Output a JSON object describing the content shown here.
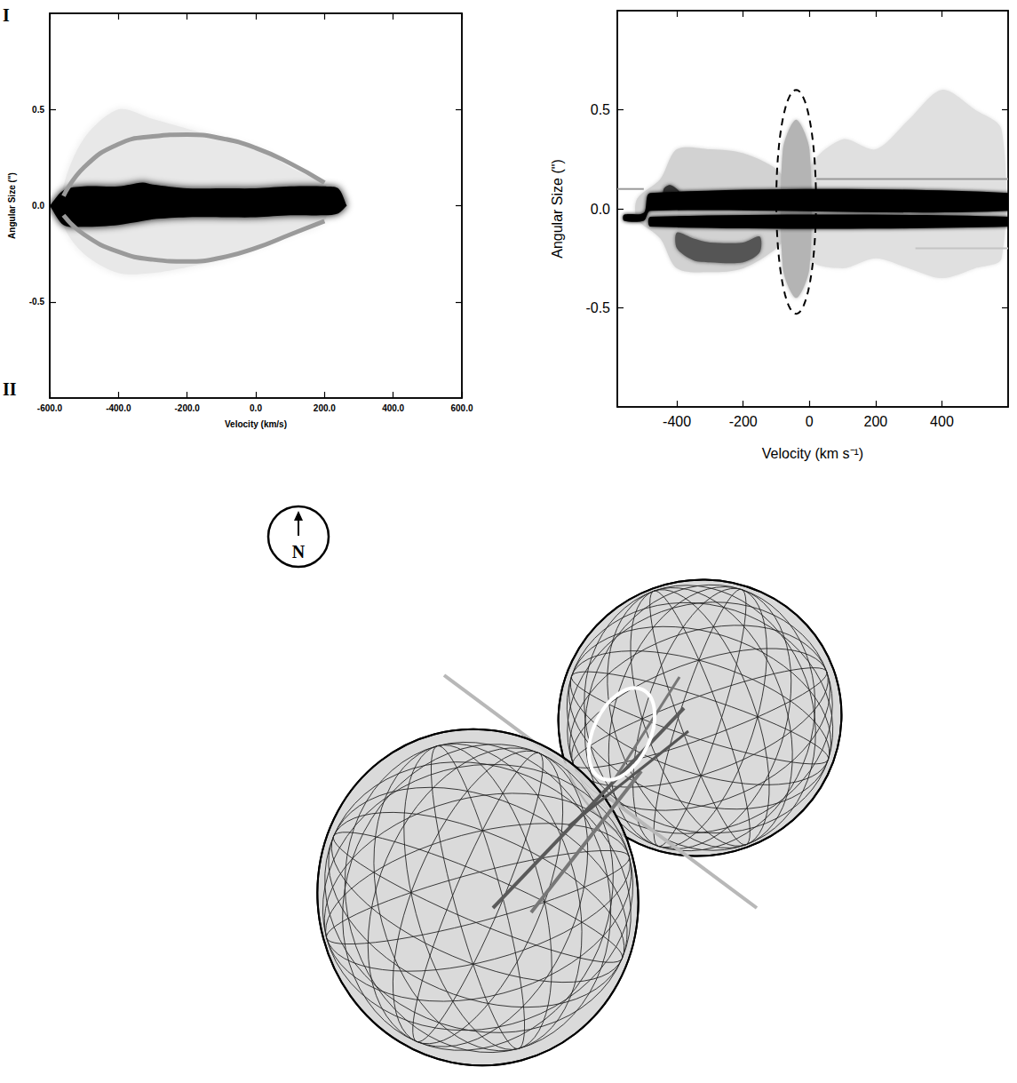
{
  "chart_data": [
    {
      "type": "position-velocity",
      "corner_labels": {
        "top": "I",
        "bottom": "II"
      },
      "x_label": "Velocity (km/s)",
      "y_label": "Angular Size (\")",
      "xlim": [
        -600,
        600
      ],
      "xticks": [
        {
          "value": -600,
          "label": "-600.0"
        },
        {
          "value": -400,
          "label": "-400.0"
        },
        {
          "value": -200,
          "label": "-200.0"
        },
        {
          "value": 0,
          "label": "0.0"
        },
        {
          "value": 200,
          "label": "200.0"
        },
        {
          "value": 400,
          "label": "400.0"
        },
        {
          "value": 600,
          "label": "600.0"
        }
      ],
      "ylim": [
        -1,
        1
      ],
      "yticks": [
        -0.5,
        {
          "value": 0,
          "label": "0.0"
        },
        0.5
      ],
      "series": [
        {
          "type": "band",
          "color": "#e8e8e8",
          "x": [
            -560,
            -500,
            -400,
            -300,
            -200,
            -100,
            0,
            100,
            200
          ],
          "upper": [
            0.1,
            0.35,
            0.5,
            0.45,
            0.4,
            0.35,
            0.3,
            0.2,
            0.1
          ],
          "lower": [
            -0.1,
            -0.25,
            -0.35,
            -0.35,
            -0.32,
            -0.28,
            -0.22,
            -0.15,
            -0.08
          ]
        },
        {
          "type": "line",
          "color": "#9a9a9a",
          "x": [
            -560,
            -500,
            -400,
            -300,
            -200,
            -100,
            0,
            100,
            200
          ],
          "y": [
            0.05,
            0.2,
            0.32,
            0.36,
            0.37,
            0.35,
            0.3,
            0.22,
            0.12
          ]
        },
        {
          "type": "line",
          "color": "#9a9a9a",
          "x": [
            -560,
            -500,
            -400,
            -300,
            -200,
            -100,
            0,
            100,
            200
          ],
          "y": [
            -0.05,
            -0.15,
            -0.24,
            -0.28,
            -0.29,
            -0.27,
            -0.22,
            -0.15,
            -0.08
          ]
        },
        {
          "type": "band",
          "color": "#000000",
          "x": [
            -600,
            -560,
            -500,
            -400,
            -330,
            -300,
            -200,
            -100,
            0,
            100,
            200,
            240,
            265
          ],
          "upper": [
            0,
            0.08,
            0.1,
            0.1,
            0.12,
            0.11,
            0.09,
            0.09,
            0.09,
            0.1,
            0.1,
            0.09,
            0
          ],
          "lower": [
            0,
            -0.1,
            -0.11,
            -0.1,
            -0.08,
            -0.07,
            -0.06,
            -0.06,
            -0.06,
            -0.05,
            -0.05,
            -0.04,
            0
          ]
        }
      ]
    },
    {
      "type": "position-velocity",
      "x_label": "Velocity (km s⁻¹)",
      "y_label": "Angular Size (\")",
      "xlim": [
        -580,
        600
      ],
      "xticks": [
        -400,
        -200,
        0,
        200,
        400
      ],
      "ylim": [
        -1,
        1
      ],
      "yticks": [
        -0.5,
        {
          "value": 0,
          "label": "0.0"
        },
        0.5
      ],
      "series": [
        {
          "type": "band",
          "color": "#d2d2d2",
          "x": [
            -520,
            -450,
            -400,
            -300,
            -200,
            -100,
            -60
          ],
          "upper": [
            0.05,
            0.15,
            0.3,
            0.3,
            0.28,
            0.2,
            0.1
          ],
          "lower": [
            -0.05,
            -0.15,
            -0.3,
            -0.32,
            -0.3,
            -0.2,
            -0.1
          ]
        },
        {
          "type": "band",
          "color": "#e0e0e0",
          "x": [
            0,
            100,
            200,
            300,
            400,
            500,
            580
          ],
          "upper": [
            0.2,
            0.35,
            0.3,
            0.45,
            0.6,
            0.5,
            0.4
          ],
          "lower": [
            -0.25,
            -0.3,
            -0.25,
            -0.3,
            -0.35,
            -0.3,
            -0.25
          ]
        },
        {
          "type": "band",
          "color": "#b4b4b4",
          "x": [
            -80,
            -40,
            0
          ],
          "upper": [
            0.3,
            0.45,
            0.3
          ],
          "lower": [
            -0.3,
            -0.45,
            -0.3
          ]
        },
        {
          "type": "band",
          "color": "#555555",
          "x": [
            -400,
            -350,
            -300,
            -200,
            -150
          ],
          "upper": [
            -0.12,
            -0.15,
            -0.17,
            -0.17,
            -0.14
          ],
          "lower": [
            -0.2,
            -0.26,
            -0.27,
            -0.27,
            -0.22
          ]
        },
        {
          "type": "band",
          "color": "#333333",
          "x": [
            -440,
            -420,
            -390
          ],
          "upper": [
            0.1,
            0.12,
            0.08
          ],
          "lower": [
            0.02,
            0.02,
            0.02
          ]
        },
        {
          "type": "band",
          "color": "#000000",
          "x": [
            -560,
            -500,
            -480,
            600
          ],
          "upper": [
            -0.03,
            -0.02,
            0.08,
            0.08
          ],
          "lower": [
            -0.06,
            -0.06,
            -0.01,
            -0.01
          ]
        },
        {
          "type": "band",
          "color": "#000000",
          "x": [
            -480,
            600
          ],
          "upper": [
            -0.04,
            -0.04
          ],
          "lower": [
            -0.09,
            -0.09
          ]
        },
        {
          "type": "line",
          "color": "#999999",
          "x": [
            -580,
            -500
          ],
          "y": [
            0.1,
            0.1
          ]
        },
        {
          "type": "line",
          "color": "#999999",
          "x": [
            20,
            600
          ],
          "y": [
            0.15,
            0.15
          ]
        },
        {
          "type": "line",
          "color": "#c4c4c4",
          "x": [
            320,
            600
          ],
          "y": [
            -0.2,
            -0.2
          ]
        }
      ],
      "ellipse": {
        "center": [
          -40,
          0.035
        ],
        "x_radius": 60,
        "y_radius": 0.565,
        "line_style": "dashed",
        "color": "#000000"
      }
    }
  ],
  "diagram": {
    "compass_label": "N"
  }
}
